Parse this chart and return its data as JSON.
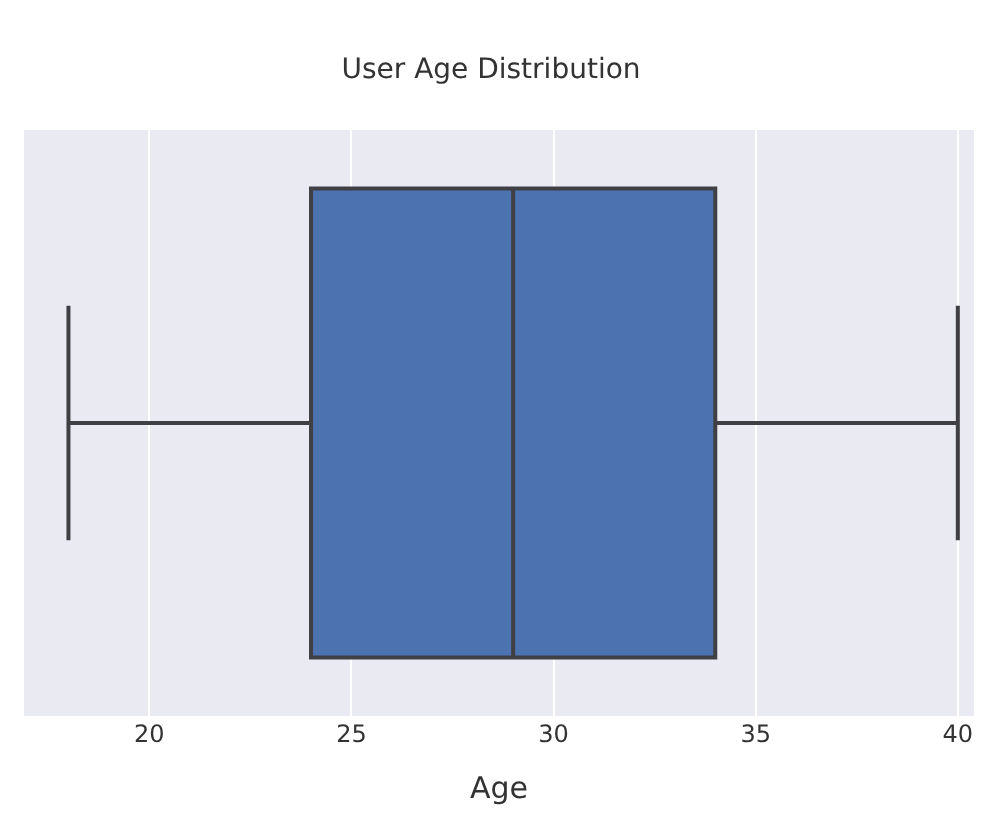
{
  "chart_data": {
    "type": "box",
    "title": "User Age Distribution",
    "xlabel": "Age",
    "orientation": "horizontal",
    "categories": [
      null
    ],
    "boxes": [
      {
        "low": 18,
        "q1": 24,
        "median": 29,
        "q3": 34,
        "high": 40
      }
    ],
    "color": "#4c72b0",
    "xlim": [
      16.9,
      40.4
    ],
    "xticks": [
      20,
      25,
      30,
      35,
      40
    ],
    "grid": "x",
    "tick_labels": "x"
  }
}
